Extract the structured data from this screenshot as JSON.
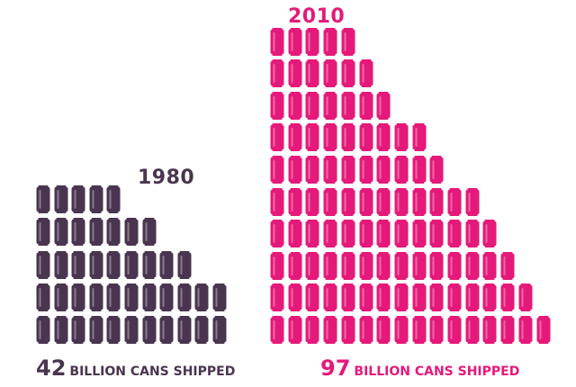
{
  "chart_data": {
    "type": "pictograph",
    "unit": "can",
    "series": [
      {
        "name": "1980",
        "value": 42,
        "value_label": "42",
        "unit_label": "BILLION CANS SHIPPED",
        "color": "#4a3550",
        "rows_bottom_to_top": [
          11,
          11,
          9,
          7,
          5
        ]
      },
      {
        "name": "2010",
        "value": 97,
        "value_label": "97",
        "unit_label": "BILLION CANS SHIPPED",
        "color": "#e5197a",
        "rows_bottom_to_top": [
          16,
          15,
          14,
          13,
          12,
          10,
          9,
          7,
          6,
          5
        ]
      }
    ]
  }
}
